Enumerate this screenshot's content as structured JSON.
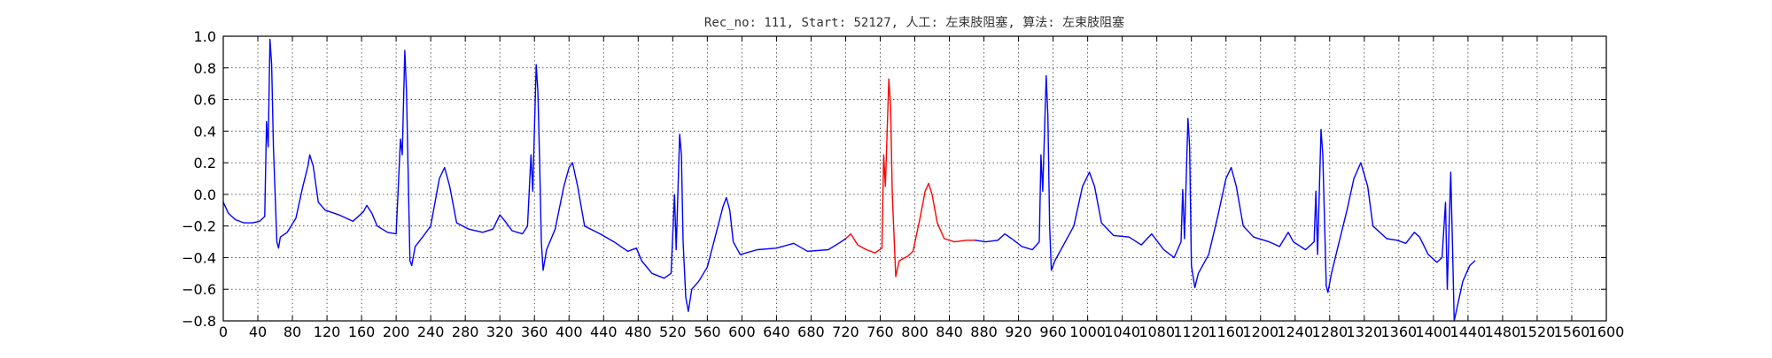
{
  "chart_data": {
    "type": "line",
    "title": "Rec_no: 111, Start: 52127, 人工: 左束肢阻塞, 算法: 左束肢阻塞",
    "xlabel": "",
    "ylabel": "",
    "xlim": [
      0,
      1600
    ],
    "ylim": [
      -0.8,
      1.0
    ],
    "grid": true,
    "grid_style": "dotted",
    "x_ticks": [
      0,
      40,
      80,
      120,
      160,
      200,
      240,
      280,
      320,
      360,
      400,
      440,
      480,
      520,
      560,
      600,
      640,
      680,
      720,
      760,
      800,
      840,
      880,
      920,
      960,
      1000,
      1040,
      1080,
      1120,
      1160,
      1200,
      1240,
      1280,
      1320,
      1360,
      1400,
      1440,
      1480,
      1520,
      1560,
      1600
    ],
    "x_tick_labels": [
      "0",
      "40",
      "80",
      "120",
      "160",
      "200",
      "240",
      "280",
      "320",
      "360",
      "400",
      "440",
      "480",
      "520",
      "560",
      "600",
      "640",
      "680",
      "720",
      "760",
      "800",
      "840",
      "880",
      "920",
      "960",
      "1000",
      "1040",
      "1080",
      "1120",
      "1160",
      "1200",
      "1240",
      "1280",
      "1320",
      "1360",
      "1400",
      "1440",
      "1480",
      "1520",
      "1560",
      "1600"
    ],
    "y_ticks": [
      -0.8,
      -0.6,
      -0.4,
      -0.2,
      0.0,
      0.2,
      0.4,
      0.6,
      0.8,
      1.0
    ],
    "y_tick_labels": [
      "−0.8",
      "−0.6",
      "−0.4",
      "−0.2",
      "0.0",
      "0.2",
      "0.4",
      "0.6",
      "0.8",
      "1.0"
    ],
    "highlight": {
      "x_start": 720,
      "x_end": 1000,
      "color": "#ff0000"
    },
    "series": [
      {
        "color": "#0000ff",
        "points": [
          [
            0,
            -0.05
          ],
          [
            6,
            -0.12
          ],
          [
            14,
            -0.16
          ],
          [
            24,
            -0.18
          ],
          [
            34,
            -0.18
          ],
          [
            42,
            -0.17
          ],
          [
            48,
            -0.14
          ],
          [
            50,
            0.46
          ],
          [
            52,
            0.3
          ],
          [
            54,
            0.98
          ],
          [
            56,
            0.82
          ],
          [
            58,
            0.3
          ],
          [
            62,
            -0.3
          ],
          [
            64,
            -0.34
          ],
          [
            66,
            -0.27
          ],
          [
            74,
            -0.24
          ],
          [
            84,
            -0.15
          ],
          [
            92,
            0.05
          ],
          [
            98,
            0.18
          ],
          [
            100,
            0.25
          ],
          [
            104,
            0.18
          ],
          [
            110,
            -0.05
          ],
          [
            118,
            -0.1
          ],
          [
            134,
            -0.13
          ],
          [
            150,
            -0.17
          ],
          [
            162,
            -0.11
          ],
          [
            166,
            -0.07
          ],
          [
            172,
            -0.12
          ],
          [
            178,
            -0.2
          ],
          [
            190,
            -0.24
          ],
          [
            200,
            -0.25
          ],
          [
            205,
            0.35
          ],
          [
            207,
            0.25
          ],
          [
            210,
            0.91
          ],
          [
            212,
            0.65
          ],
          [
            214,
            0.1
          ],
          [
            216,
            -0.42
          ],
          [
            218,
            -0.45
          ],
          [
            222,
            -0.33
          ],
          [
            232,
            -0.26
          ],
          [
            240,
            -0.2
          ],
          [
            250,
            0.1
          ],
          [
            256,
            0.17
          ],
          [
            262,
            0.05
          ],
          [
            270,
            -0.18
          ],
          [
            284,
            -0.22
          ],
          [
            300,
            -0.24
          ],
          [
            312,
            -0.22
          ],
          [
            320,
            -0.13
          ],
          [
            326,
            -0.17
          ],
          [
            334,
            -0.23
          ],
          [
            346,
            -0.25
          ],
          [
            352,
            -0.2
          ],
          [
            356,
            0.25
          ],
          [
            358,
            0.02
          ],
          [
            362,
            0.82
          ],
          [
            364,
            0.65
          ],
          [
            366,
            0.2
          ],
          [
            368,
            -0.3
          ],
          [
            370,
            -0.48
          ],
          [
            374,
            -0.35
          ],
          [
            384,
            -0.22
          ],
          [
            394,
            0.05
          ],
          [
            400,
            0.17
          ],
          [
            404,
            0.2
          ],
          [
            410,
            0.05
          ],
          [
            418,
            -0.2
          ],
          [
            436,
            -0.25
          ],
          [
            452,
            -0.3
          ],
          [
            468,
            -0.36
          ],
          [
            478,
            -0.34
          ],
          [
            484,
            -0.42
          ],
          [
            496,
            -0.5
          ],
          [
            510,
            -0.53
          ],
          [
            518,
            -0.5
          ],
          [
            522,
            0.0
          ],
          [
            524,
            -0.35
          ],
          [
            528,
            0.38
          ],
          [
            530,
            0.25
          ],
          [
            532,
            -0.3
          ],
          [
            535,
            -0.65
          ],
          [
            538,
            -0.74
          ],
          [
            542,
            -0.6
          ],
          [
            550,
            -0.55
          ],
          [
            560,
            -0.46
          ],
          [
            570,
            -0.25
          ],
          [
            578,
            -0.08
          ],
          [
            582,
            -0.02
          ],
          [
            586,
            -0.1
          ],
          [
            590,
            -0.3
          ],
          [
            598,
            -0.38
          ],
          [
            618,
            -0.35
          ],
          [
            640,
            -0.34
          ],
          [
            660,
            -0.31
          ],
          [
            676,
            -0.36
          ],
          [
            700,
            -0.35
          ],
          [
            712,
            -0.31
          ],
          [
            720,
            -0.28
          ]
        ]
      },
      {
        "color": "#ff0000",
        "points": [
          [
            720,
            -0.28
          ],
          [
            726,
            -0.25
          ],
          [
            734,
            -0.32
          ],
          [
            744,
            -0.35
          ],
          [
            754,
            -0.37
          ],
          [
            762,
            -0.34
          ],
          [
            764,
            0.25
          ],
          [
            766,
            0.05
          ],
          [
            770,
            0.73
          ],
          [
            772,
            0.55
          ],
          [
            774,
            0.0
          ],
          [
            778,
            -0.52
          ],
          [
            782,
            -0.42
          ],
          [
            792,
            -0.39
          ],
          [
            798,
            -0.36
          ],
          [
            806,
            -0.15
          ],
          [
            812,
            0.02
          ],
          [
            816,
            0.07
          ],
          [
            820,
            0.0
          ],
          [
            826,
            -0.18
          ],
          [
            834,
            -0.28
          ],
          [
            846,
            -0.3
          ],
          [
            860,
            -0.29
          ],
          [
            870,
            -0.29
          ]
        ]
      },
      {
        "color": "#0000ff",
        "points": [
          [
            870,
            -0.29
          ],
          [
            882,
            -0.3
          ],
          [
            896,
            -0.29
          ],
          [
            904,
            -0.25
          ],
          [
            912,
            -0.28
          ],
          [
            924,
            -0.33
          ],
          [
            936,
            -0.35
          ],
          [
            944,
            -0.3
          ],
          [
            946,
            0.25
          ],
          [
            948,
            0.02
          ],
          [
            952,
            0.75
          ],
          [
            954,
            0.5
          ],
          [
            956,
            -0.2
          ],
          [
            958,
            -0.48
          ],
          [
            962,
            -0.42
          ],
          [
            974,
            -0.3
          ],
          [
            984,
            -0.2
          ],
          [
            994,
            0.05
          ],
          [
            1002,
            0.14
          ],
          [
            1008,
            0.05
          ],
          [
            1016,
            -0.18
          ],
          [
            1030,
            -0.26
          ],
          [
            1048,
            -0.27
          ],
          [
            1062,
            -0.32
          ],
          [
            1074,
            -0.25
          ],
          [
            1088,
            -0.35
          ],
          [
            1100,
            -0.4
          ],
          [
            1108,
            -0.3
          ],
          [
            1110,
            0.03
          ],
          [
            1112,
            -0.28
          ],
          [
            1116,
            0.48
          ],
          [
            1118,
            0.3
          ],
          [
            1120,
            -0.45
          ],
          [
            1124,
            -0.59
          ],
          [
            1128,
            -0.5
          ],
          [
            1140,
            -0.38
          ],
          [
            1150,
            -0.15
          ],
          [
            1160,
            0.1
          ],
          [
            1166,
            0.17
          ],
          [
            1172,
            0.05
          ],
          [
            1180,
            -0.2
          ],
          [
            1192,
            -0.27
          ],
          [
            1210,
            -0.3
          ],
          [
            1222,
            -0.33
          ],
          [
            1232,
            -0.24
          ],
          [
            1238,
            -0.3
          ],
          [
            1252,
            -0.35
          ],
          [
            1262,
            -0.3
          ],
          [
            1264,
            0.02
          ],
          [
            1266,
            -0.38
          ],
          [
            1270,
            0.41
          ],
          [
            1272,
            0.25
          ],
          [
            1276,
            -0.58
          ],
          [
            1278,
            -0.62
          ],
          [
            1282,
            -0.5
          ],
          [
            1290,
            -0.32
          ],
          [
            1300,
            -0.1
          ],
          [
            1308,
            0.1
          ],
          [
            1316,
            0.2
          ],
          [
            1324,
            0.05
          ],
          [
            1330,
            -0.2
          ],
          [
            1346,
            -0.28
          ],
          [
            1358,
            -0.29
          ],
          [
            1368,
            -0.31
          ],
          [
            1378,
            -0.24
          ],
          [
            1384,
            -0.27
          ],
          [
            1394,
            -0.38
          ],
          [
            1404,
            -0.43
          ],
          [
            1410,
            -0.4
          ],
          [
            1414,
            -0.05
          ],
          [
            1416,
            -0.6
          ],
          [
            1420,
            0.14
          ],
          [
            1422,
            -0.3
          ],
          [
            1424,
            -0.8
          ],
          [
            1428,
            -0.7
          ],
          [
            1434,
            -0.55
          ],
          [
            1442,
            -0.45
          ],
          [
            1448,
            -0.42
          ]
        ]
      }
    ]
  }
}
